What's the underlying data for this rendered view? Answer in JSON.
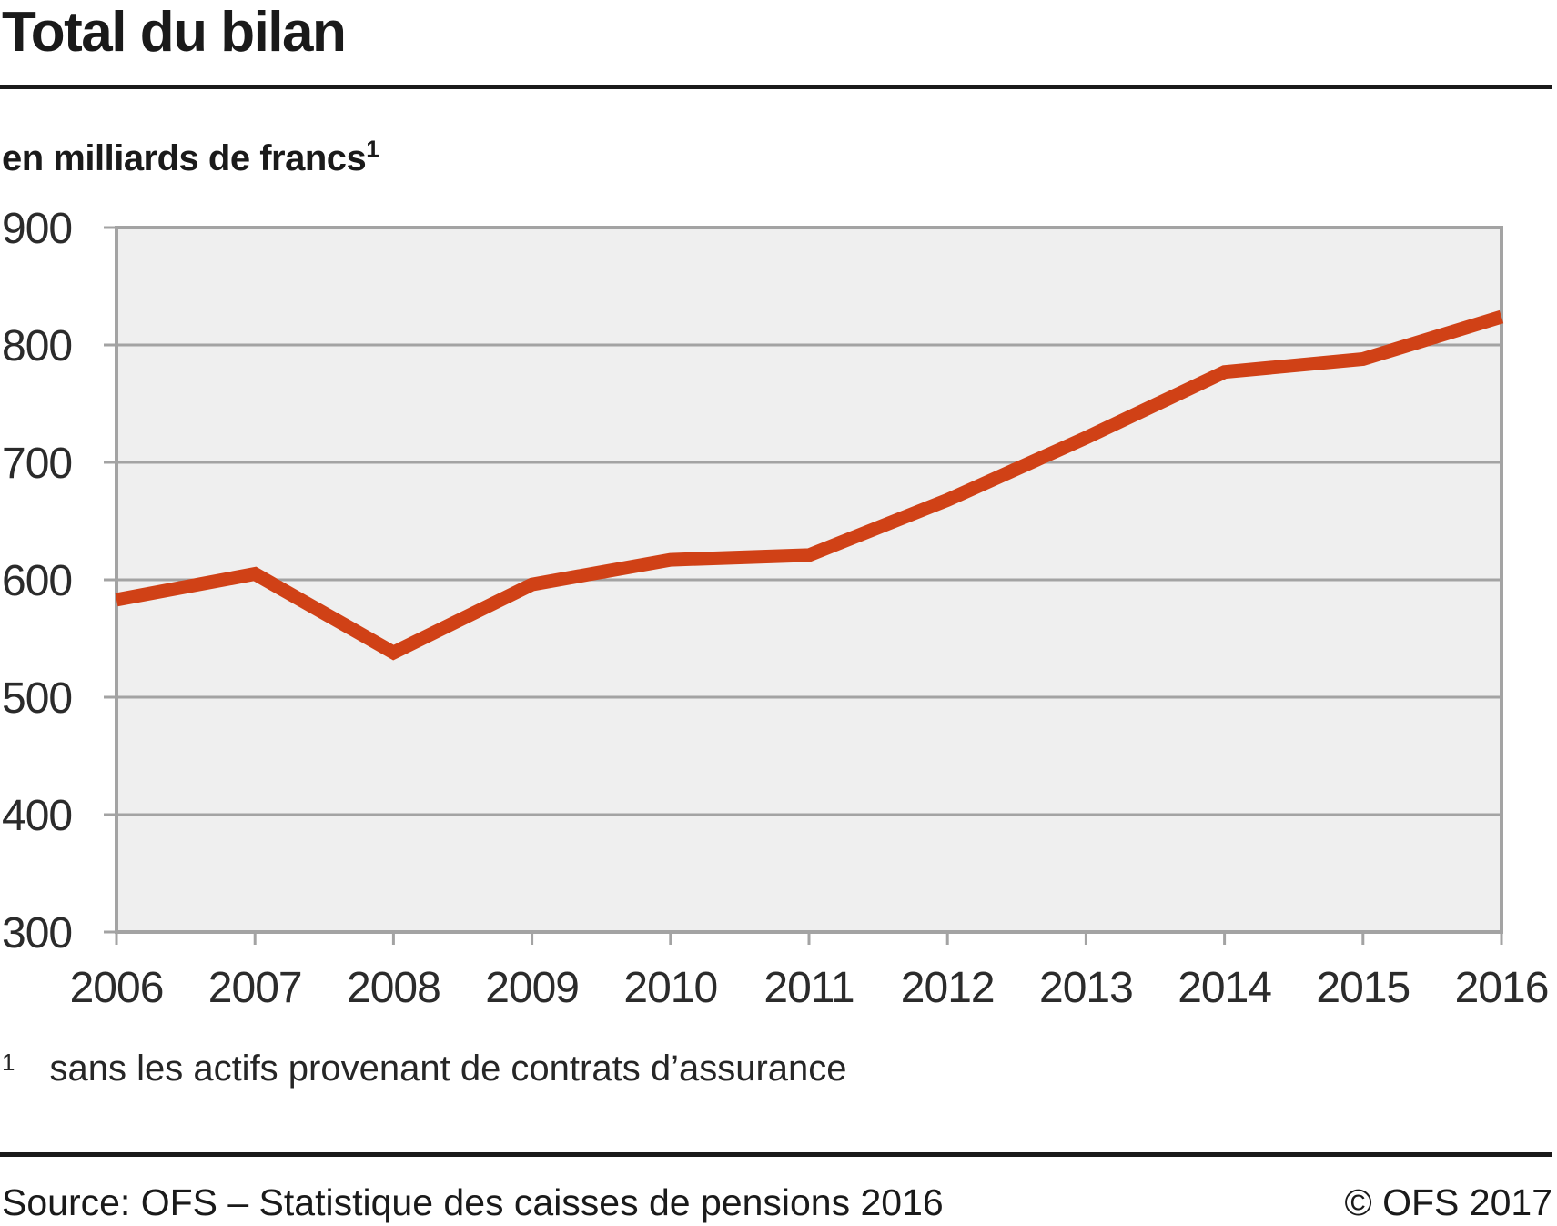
{
  "header": {
    "title": "Total du bilan",
    "subtitle": "en milliards de francs",
    "subtitle_marker": "1"
  },
  "footnote": {
    "marker": "1",
    "text": "sans les actifs provenant de contrats d’assurance"
  },
  "footer": {
    "source": "Source: OFS – Statistique des caisses de pensions 2016",
    "copyright": "© OFS 2017"
  },
  "colors": {
    "line": "#d04116",
    "plot_background": "#efefef",
    "grid": "#a3a3a3",
    "tick_text": "#2b2b2b",
    "text": "#1a1a1a",
    "rule": "#1a1a1a"
  },
  "chart_data": {
    "type": "line",
    "title": "Total du bilan",
    "unit_label": "en milliards de francs",
    "categories": [
      "2006",
      "2007",
      "2008",
      "2009",
      "2010",
      "2011",
      "2012",
      "2013",
      "2014",
      "2015",
      "2016"
    ],
    "series": [
      {
        "name": "Total du bilan (sans les actifs provenant de contrats d’assurance)",
        "values": [
          583,
          605,
          538,
          596,
          617,
          621,
          668,
          721,
          777,
          788,
          824
        ]
      }
    ],
    "xlabel": "",
    "ylabel": "en milliards de francs",
    "ylim": [
      300,
      900
    ],
    "ytick_step": 100,
    "grid": "horizontal",
    "legend": "none"
  }
}
